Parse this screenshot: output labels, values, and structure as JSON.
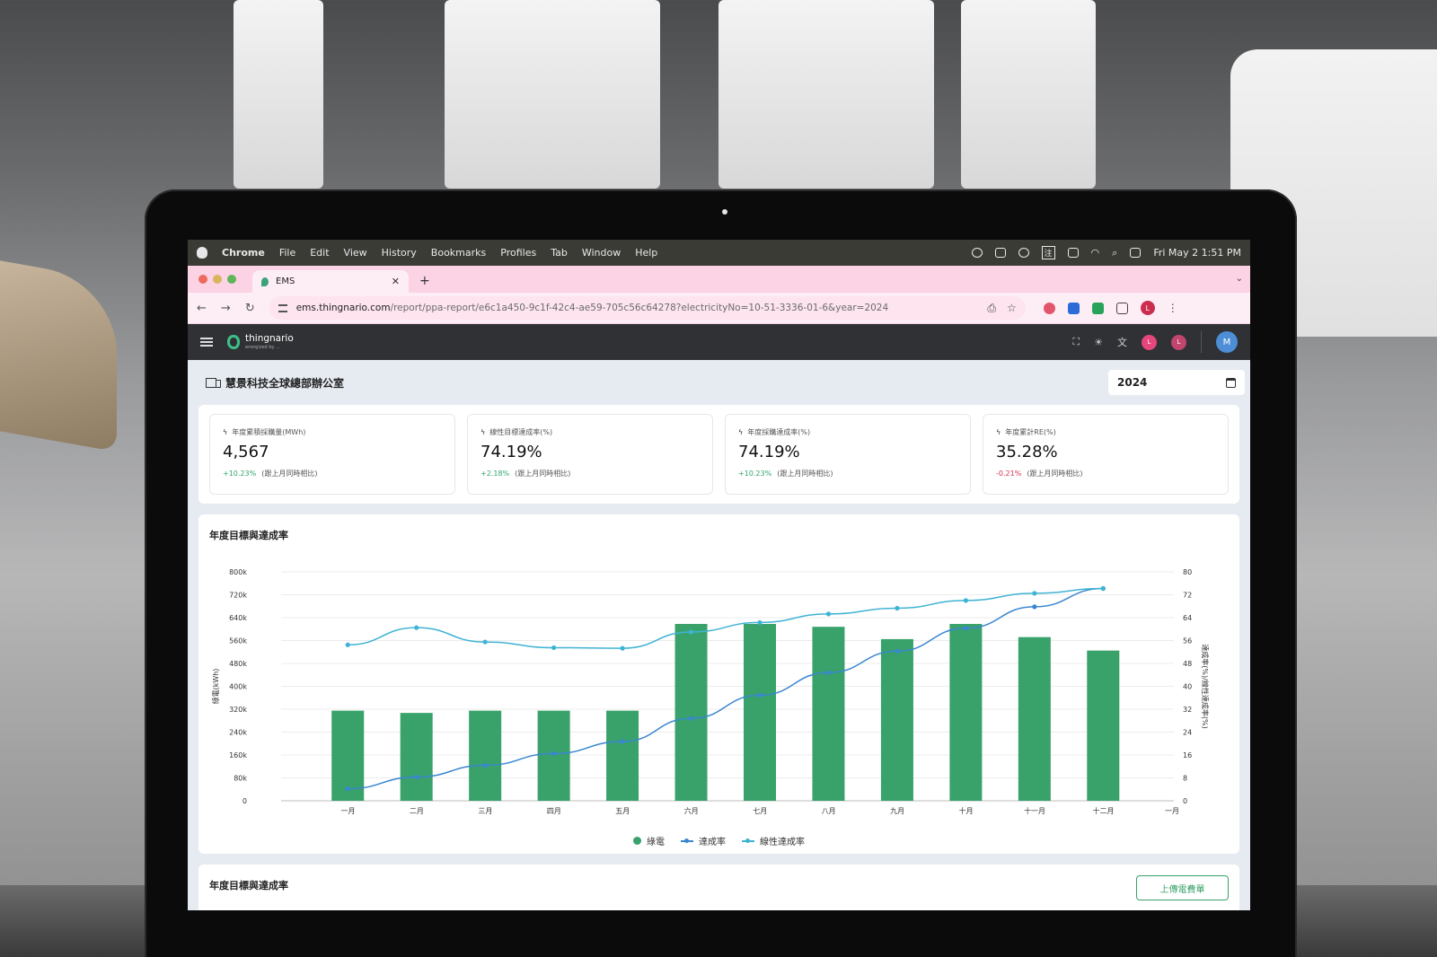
{
  "menubar": {
    "app": "Chrome",
    "items": [
      "File",
      "Edit",
      "View",
      "History",
      "Bookmarks",
      "Profiles",
      "Tab",
      "Window",
      "Help"
    ],
    "clock": "Fri May 2  1:51 PM",
    "ime": "注"
  },
  "browser": {
    "tab_title": "EMS",
    "url_host": "ems.thingnario.com",
    "url_path": "/report/ppa-report/e6c1a450-9c1f-42c4-ae59-705c56c64278?electricityNo=10-51-3336-01-6&year=2024",
    "profile_letter": "L"
  },
  "app": {
    "logo": "thingnario",
    "logo_sub": "energized by ...",
    "user_initial": "M",
    "badge_letter": "L"
  },
  "page": {
    "title": "慧景科技全球總部辦公室",
    "year": "2024"
  },
  "kpis": [
    {
      "label": "年度累積採購量(MWh)",
      "value": "4,567",
      "delta": "+10.23%",
      "direction": "up",
      "compare": "(跟上月同時相比)"
    },
    {
      "label": "線性目標達成率(%)",
      "value": "74.19%",
      "delta": "+2.18%",
      "direction": "up",
      "compare": "(跟上月同時相比)"
    },
    {
      "label": "年度採購達成率(%)",
      "value": "74.19%",
      "delta": "+10.23%",
      "direction": "up",
      "compare": "(跟上月同時相比)"
    },
    {
      "label": "年度累計RE(%)",
      "value": "35.28%",
      "delta": "-0.21%",
      "direction": "down",
      "compare": "(跟上月同時相比)"
    }
  ],
  "chart_card": {
    "title": "年度目標與達成率"
  },
  "chart_data": {
    "type": "bar",
    "categories": [
      "一月",
      "二月",
      "三月",
      "四月",
      "五月",
      "六月",
      "七月",
      "八月",
      "九月",
      "十月",
      "十一月",
      "十二月",
      "一月"
    ],
    "ylabel": "綠電(kWh)",
    "y2label": "達成率(%)/線性達成率(%)",
    "ylim": [
      0,
      800000
    ],
    "y2lim": [
      0,
      80
    ],
    "y_ticks": [
      "0",
      "80k",
      "160k",
      "240k",
      "320k",
      "400k",
      "480k",
      "560k",
      "640k",
      "720k",
      "800k"
    ],
    "y2_ticks": [
      "0",
      "8",
      "16",
      "24",
      "32",
      "40",
      "48",
      "56",
      "64",
      "72",
      "80"
    ],
    "series": [
      {
        "name": "綠電",
        "type": "bar",
        "axis": "left",
        "color": "#38a26a",
        "values": [
          315000,
          307000,
          315000,
          315000,
          315000,
          618000,
          618000,
          608000,
          565000,
          618000,
          572000,
          525000,
          null
        ]
      },
      {
        "name": "達成率",
        "type": "line",
        "axis": "right",
        "color": "#3a86d0",
        "values": [
          4.2,
          8.3,
          12.4,
          16.5,
          20.7,
          28.8,
          36.9,
          44.8,
          52.3,
          60.3,
          67.8,
          74.2,
          null
        ]
      },
      {
        "name": "線性達成率",
        "type": "line",
        "axis": "right",
        "color": "#3fb3d4",
        "values": [
          54.5,
          60.5,
          55.5,
          53.5,
          53.3,
          59.0,
          62.3,
          65.3,
          67.3,
          70.0,
          72.5,
          74.2,
          null
        ]
      }
    ],
    "legend": "bottom",
    "grid": true
  },
  "second_card": {
    "title": "年度目標與達成率",
    "button": "上傳電費單"
  }
}
